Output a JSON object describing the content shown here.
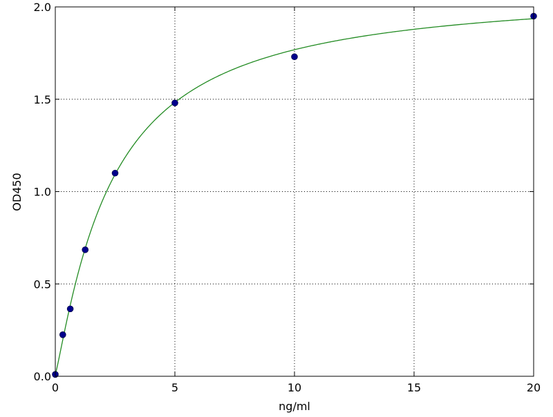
{
  "chart_data": {
    "type": "scatter",
    "title": "",
    "xlabel": "ng/ml",
    "ylabel": "OD450",
    "xlim": [
      0,
      20
    ],
    "ylim": [
      0.0,
      2.0
    ],
    "xticks": [
      "0",
      "5",
      "10",
      "15",
      "20"
    ],
    "yticks": [
      "0.0",
      "0.5",
      "1.0",
      "1.5",
      "2.0"
    ],
    "grid": true,
    "series": [
      {
        "type": "scatter",
        "color": "#00008b",
        "x": [
          0,
          0.3125,
          0.625,
          1.25,
          2.5,
          5,
          10,
          20
        ],
        "y": [
          0.01,
          0.225,
          0.365,
          0.685,
          1.1,
          1.48,
          1.73,
          1.95
        ]
      },
      {
        "type": "line",
        "color": "#228b22",
        "description_of_fit": "standard curve"
      }
    ]
  }
}
